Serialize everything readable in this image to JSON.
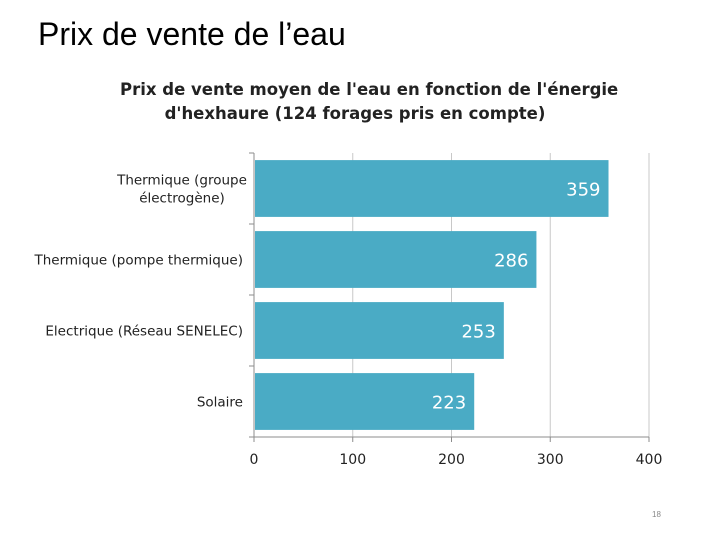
{
  "slide": {
    "title": "Prix de vente de l’eau",
    "page_number": "18"
  },
  "chart_data": {
    "type": "bar",
    "orientation": "horizontal",
    "title_lines": [
      "Prix de vente moyen de l'eau en fonction de l'énergie",
      "d'hexhaure (124 forages pris en compte)"
    ],
    "categories": [
      "Thermique (groupe électrogène)",
      "Thermique (pompe thermique)",
      "Electrique (Réseau SENELEC)",
      "Solaire"
    ],
    "category_lines": [
      [
        "Thermique (groupe",
        "électrogène)"
      ],
      [
        "Thermique (pompe thermique)"
      ],
      [
        "Electrique (Réseau SENELEC)"
      ],
      [
        "Solaire"
      ]
    ],
    "values": [
      359,
      286,
      253,
      223
    ],
    "data_labels": [
      "359",
      "286",
      "253",
      "223"
    ],
    "xlim": [
      0,
      400
    ],
    "xticks": [
      "0",
      "100",
      "200",
      "300",
      "400"
    ],
    "grid": true,
    "bar_color": "#4aabc5",
    "grid_color": "#c8c8c8",
    "label_color": "#ffffff"
  }
}
